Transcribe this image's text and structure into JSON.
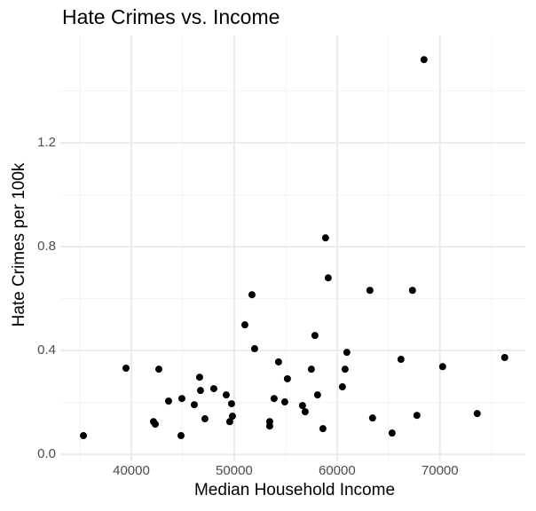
{
  "chart_data": {
    "type": "scatter",
    "title": "Hate Crimes vs. Income",
    "x_label": "Median Household Income",
    "y_label": "Hate Crimes per 100k",
    "color": "#000000",
    "grid": true,
    "xlim": [
      33100,
      78300
    ],
    "ylim": [
      -0.027,
      1.614
    ],
    "xticks": [
      40000,
      50000,
      60000,
      70000
    ],
    "yticks": [
      {
        "value": 0,
        "label": "0.0"
      },
      0.4,
      0.8,
      1.2
    ],
    "x": [
      35345,
      39483,
      42155,
      42328,
      42672,
      43620,
      44914,
      44828,
      46121,
      46638,
      46724,
      47155,
      48017,
      49224,
      49569,
      49741,
      49828,
      51035,
      51724,
      51983,
      53448,
      53448,
      53879,
      54310,
      54914,
      55172,
      56638,
      56897,
      57500,
      57845,
      58103,
      58621,
      58879,
      59138,
      60517,
      60776,
      60948,
      63190,
      63448,
      65345,
      66207,
      67328,
      67759,
      68448,
      70259,
      73621,
      76293
    ],
    "y": [
      0.072,
      0.332,
      0.126,
      0.116,
      0.328,
      0.205,
      0.215,
      0.072,
      0.191,
      0.297,
      0.246,
      0.137,
      0.253,
      0.229,
      0.126,
      0.195,
      0.147,
      0.499,
      0.615,
      0.407,
      0.126,
      0.109,
      0.215,
      0.356,
      0.202,
      0.291,
      0.188,
      0.164,
      0.328,
      0.458,
      0.229,
      0.099,
      0.834,
      0.68,
      0.26,
      0.328,
      0.393,
      0.632,
      0.14,
      0.082,
      0.366,
      0.632,
      0.15,
      1.521,
      0.338,
      0.157,
      0.373
    ]
  }
}
